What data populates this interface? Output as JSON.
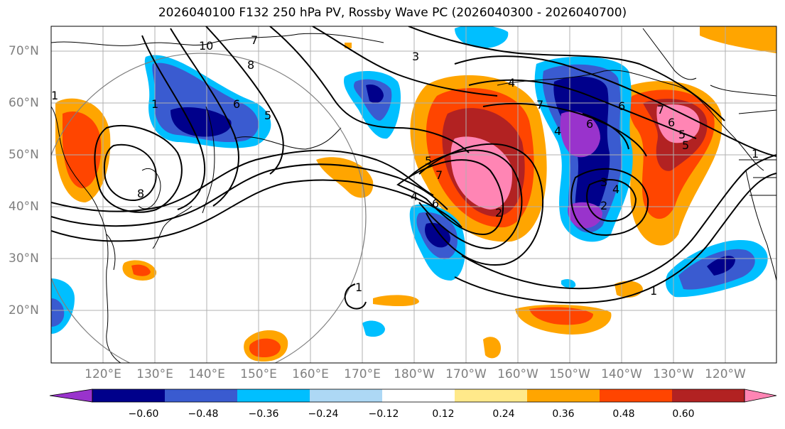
{
  "title": "2026040100 F132 250 hPa PV, Rossby Wave PC (2026040300 - 2026040700)",
  "lat_labels": [
    "70°N",
    "60°N",
    "50°N",
    "40°N",
    "30°N",
    "20°N"
  ],
  "lon_labels": [
    "120°E",
    "130°E",
    "140°E",
    "150°E",
    "160°E",
    "170°E",
    "180°W",
    "170°W",
    "160°W",
    "150°W",
    "140°W",
    "130°W",
    "120°W"
  ],
  "colorbar": {
    "ticks": [
      "−0.60",
      "−0.48",
      "−0.36",
      "−0.24",
      "−0.12",
      "0.12",
      "0.24",
      "0.36",
      "0.48",
      "0.60"
    ],
    "colors": [
      "#9933cc",
      "#00008b",
      "#3a5bd0",
      "#00bfff",
      "#add8f5",
      "#ffffff",
      "#ffe98a",
      "#ffa500",
      "#ff4500",
      "#b22222",
      "#ff85b4"
    ]
  },
  "contour_labels": [
    "10",
    "8",
    "7",
    "6",
    "5",
    "4",
    "3",
    "2",
    "1",
    "1",
    "1",
    "1",
    "6",
    "7",
    "5",
    "4",
    "6",
    "4",
    "3",
    "2",
    "8",
    "7",
    "6",
    "5",
    "5",
    "7",
    "6",
    "4",
    "1"
  ]
}
